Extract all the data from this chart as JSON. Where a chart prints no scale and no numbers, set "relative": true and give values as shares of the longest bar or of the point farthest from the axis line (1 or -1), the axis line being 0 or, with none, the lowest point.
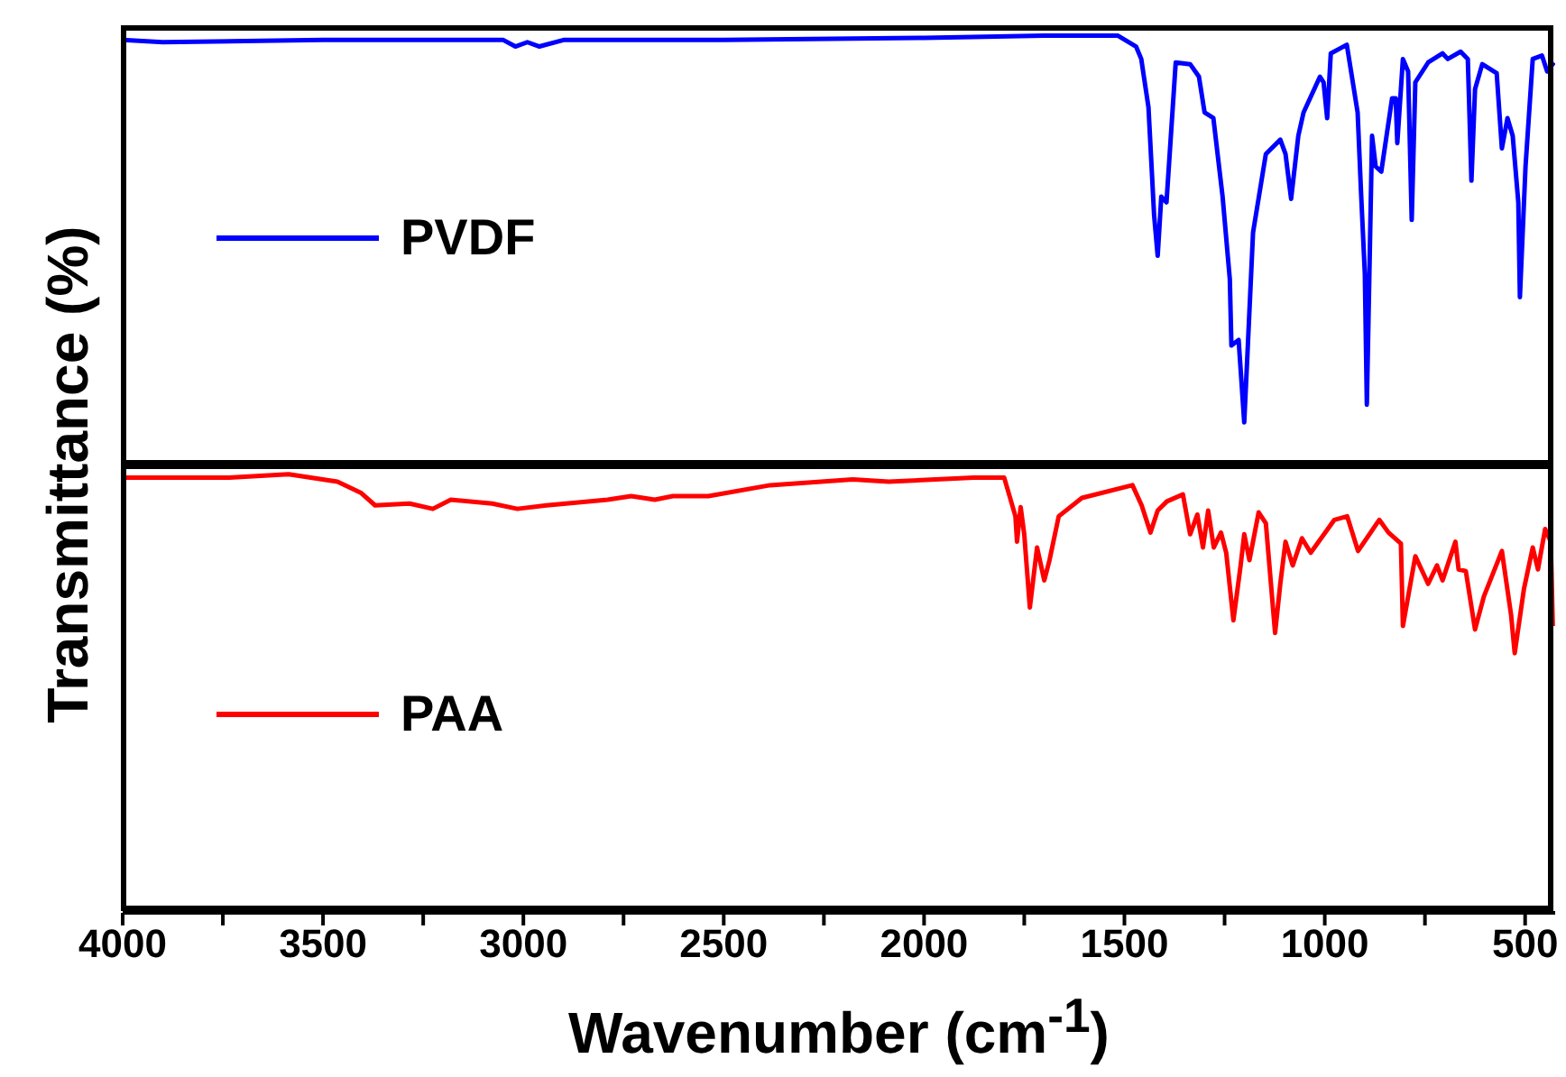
{
  "chart_data": [
    {
      "type": "line",
      "relative": true,
      "ylabel": "Transmittance (%)",
      "xlim": [
        4000,
        425
      ],
      "tick_labels": false,
      "legend": "left",
      "marker": "none",
      "line_style": "solid",
      "x": [
        4000,
        3900,
        3500,
        3050,
        3020,
        2990,
        2960,
        2900,
        2500,
        2000,
        1700,
        1516,
        1471,
        1458,
        1440,
        1426,
        1417,
        1408,
        1395,
        1372,
        1336,
        1314,
        1300,
        1278,
        1255,
        1237,
        1233,
        1215,
        1201,
        1192,
        1179,
        1147,
        1111,
        1098,
        1084,
        1066,
        1053,
        1012,
        1003,
        994,
        985,
        945,
        918,
        909,
        900,
        895,
        882,
        873,
        859,
        832,
        823,
        819,
        805,
        792,
        783,
        774,
        742,
        706,
        693,
        661,
        643,
        634,
        625,
        607,
        571,
        558,
        544,
        531,
        517,
        513,
        499,
        481,
        458,
        445,
        428
      ],
      "series": [
        {
          "name": "PVDF",
          "color": "#0000ff",
          "values": [
            0.99,
            0.985,
            0.99,
            0.99,
            0.975,
            0.985,
            0.975,
            0.99,
            0.99,
            0.995,
            1.0,
            1.0,
            0.975,
            0.946,
            0.834,
            0.585,
            0.49,
            0.627,
            0.614,
            0.938,
            0.934,
            0.905,
            0.822,
            0.809,
            0.627,
            0.436,
            0.282,
            0.295,
            0.104,
            0.282,
            0.544,
            0.726,
            0.759,
            0.726,
            0.622,
            0.768,
            0.822,
            0.905,
            0.892,
            0.809,
            0.959,
            0.979,
            0.822,
            0.627,
            0.448,
            0.145,
            0.768,
            0.697,
            0.685,
            0.855,
            0.855,
            0.751,
            0.946,
            0.917,
            0.573,
            0.892,
            0.938,
            0.959,
            0.946,
            0.963,
            0.946,
            0.664,
            0.876,
            0.934,
            0.913,
            0.739,
            0.809,
            0.768,
            0.614,
            0.394,
            0.697,
            0.946,
            0.954,
            0.917,
            0.938
          ]
        }
      ]
    },
    {
      "type": "line",
      "relative": true,
      "xlabel": "Wavenumber (cm$^{-1}$)",
      "xlim": [
        4000,
        425
      ],
      "legend": "left",
      "marker": "none",
      "line_style": "solid",
      "xticks": [
        4000,
        {
          "value": 3750,
          "label": null
        },
        3500,
        {
          "value": 3250,
          "label": null
        },
        3000,
        {
          "value": 2750,
          "label": null
        },
        2500,
        {
          "value": 2250,
          "label": null
        },
        2000,
        {
          "value": 1750,
          "label": null
        },
        1500,
        {
          "value": 1250,
          "label": null
        },
        1000,
        {
          "value": 750,
          "label": null
        },
        500
      ],
      "x": [
        4000,
        3734,
        3586,
        3464,
        3406,
        3370,
        3284,
        3226,
        3181,
        3078,
        3015,
        2942,
        2790,
        2731,
        2672,
        2627,
        2538,
        2384,
        2178,
        2088,
        1876,
        1800,
        1772,
        1768,
        1759,
        1750,
        1736,
        1718,
        1700,
        1687,
        1664,
        1606,
        1480,
        1457,
        1435,
        1417,
        1394,
        1354,
        1336,
        1318,
        1304,
        1291,
        1277,
        1259,
        1246,
        1228,
        1210,
        1201,
        1188,
        1165,
        1147,
        1124,
        1111,
        1098,
        1080,
        1057,
        1035,
        976,
        944,
        917,
        864,
        841,
        810,
        805,
        774,
        742,
        720,
        706,
        674,
        666,
        648,
        625,
        603,
        558,
        535,
        526,
        503,
        481,
        468,
        450,
        436,
        431
      ],
      "series": [
        {
          "name": "PAA",
          "color": "#ff0000",
          "values": [
            0.992,
            0.992,
            1.0,
            0.983,
            0.958,
            0.929,
            0.933,
            0.921,
            0.942,
            0.933,
            0.921,
            0.929,
            0.942,
            0.95,
            0.942,
            0.95,
            0.95,
            0.975,
            0.988,
            0.983,
            0.992,
            0.992,
            0.904,
            0.846,
            0.925,
            0.863,
            0.696,
            0.833,
            0.758,
            0.804,
            0.904,
            0.946,
            0.975,
            0.929,
            0.867,
            0.917,
            0.938,
            0.954,
            0.863,
            0.908,
            0.833,
            0.917,
            0.833,
            0.867,
            0.821,
            0.667,
            0.792,
            0.863,
            0.804,
            0.913,
            0.888,
            0.638,
            0.75,
            0.846,
            0.792,
            0.854,
            0.821,
            0.896,
            0.904,
            0.825,
            0.896,
            0.867,
            0.842,
            0.654,
            0.813,
            0.75,
            0.792,
            0.758,
            0.846,
            0.783,
            0.779,
            0.646,
            0.721,
            0.825,
            0.679,
            0.592,
            0.738,
            0.833,
            0.783,
            0.875,
            0.846,
            0.654
          ]
        }
      ]
    }
  ]
}
